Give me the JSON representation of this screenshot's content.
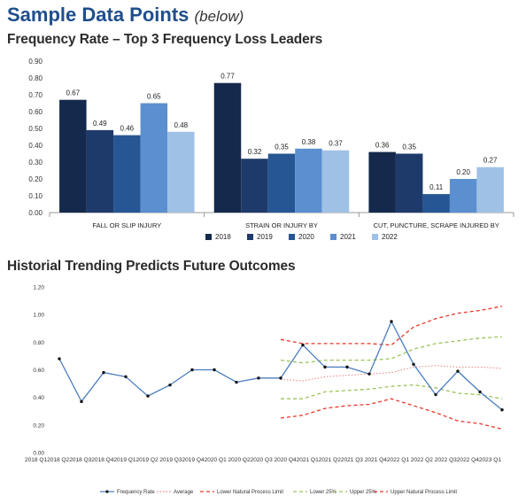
{
  "header": {
    "title": "Sample Data Points",
    "title_note": "(below)"
  },
  "chart_data": [
    {
      "type": "bar",
      "title": "Frequency Rate – Top 3 Frequency Loss Leaders",
      "categories": [
        "FALL OR SLIP INJURY",
        "STRAIN OR INJURY BY",
        "CUT, PUNCTURE, SCRAPE INJURED BY"
      ],
      "series": [
        {
          "name": "2018",
          "color": "#14294b",
          "values": [
            0.67,
            0.77,
            0.36
          ]
        },
        {
          "name": "2019",
          "color": "#1e3a6a",
          "values": [
            0.49,
            0.32,
            0.35
          ]
        },
        {
          "name": "2020",
          "color": "#265693",
          "values": [
            0.46,
            0.35,
            0.11
          ]
        },
        {
          "name": "2021",
          "color": "#5b8fcf",
          "values": [
            0.65,
            0.38,
            0.2
          ]
        },
        {
          "name": "2022",
          "color": "#9fc1e6",
          "values": [
            0.48,
            0.37,
            0.27
          ]
        }
      ],
      "data_labels": [
        [
          "0.67",
          "0.49",
          "0.46",
          "0.65",
          "0.48"
        ],
        [
          "0.77",
          "0.32",
          "0.35",
          "0.38",
          "0.37"
        ],
        [
          "0.36",
          "0.35",
          "0.11",
          "0.20",
          "0.27"
        ]
      ],
      "ylim": [
        0,
        0.9
      ],
      "yticks": [
        "0.00",
        "0.10",
        "0.20",
        "0.30",
        "0.40",
        "0.50",
        "0.60",
        "0.70",
        "0.80",
        "0.90"
      ],
      "legend_position": "bottom",
      "grid": false
    },
    {
      "type": "line",
      "title": "Historial Trending Predicts Future Outcomes",
      "x": [
        "2018 Q1",
        "2018 Q2",
        "2018 Q3",
        "2018 Q4",
        "2019 Q1",
        "2019 Q2",
        "2019 Q3",
        "2019 Q4",
        "2020 Q1",
        "2020 Q2",
        "2020 Q3",
        "2020 Q4",
        "2021 Q1",
        "2021 Q2",
        "2021 Q3",
        "2021 Q4",
        "2022 Q1",
        "2022 Q2",
        "2022 Q3",
        "2022 Q4",
        "2023 Q1"
      ],
      "x_tick_text": "2018 Q12018 Q22018 Q32018 Q42019 Q12019 Q2 2019 Q32019 Q42020 Q1 2020 Q22020 Q3 2020 Q42021 Q12021 Q22021 Q3 2021 Q42022 Q1 2022 Q2 2022 Q32022 Q42023 Q1",
      "ylim": [
        0,
        1.2
      ],
      "yticks": [
        "0.00",
        "0.20",
        "0.40",
        "0.60",
        "0.80",
        "1.00",
        "1.20"
      ],
      "series": [
        {
          "name": "Frequency Rate",
          "color": "#4a7dbf",
          "style": "solid-markers",
          "values": [
            0.68,
            0.37,
            0.58,
            0.55,
            0.41,
            0.49,
            0.6,
            0.6,
            0.51,
            0.54,
            0.54,
            0.78,
            0.62,
            0.62,
            0.57,
            0.95,
            0.64,
            0.42,
            0.59,
            0.44,
            0.31
          ]
        },
        {
          "name": "Average",
          "color": "#e68080",
          "style": "dotted",
          "values": [
            null,
            null,
            null,
            null,
            null,
            null,
            null,
            null,
            null,
            null,
            0.53,
            0.52,
            0.55,
            0.56,
            0.57,
            0.58,
            0.62,
            0.63,
            0.62,
            0.62,
            0.61
          ]
        },
        {
          "name": "Lower Natural Process Limit",
          "color": "#e8372a",
          "style": "dashed",
          "values": [
            null,
            null,
            null,
            null,
            null,
            null,
            null,
            null,
            null,
            null,
            0.25,
            0.27,
            0.32,
            0.34,
            0.35,
            0.39,
            0.34,
            0.29,
            0.23,
            0.21,
            0.17
          ]
        },
        {
          "name": "Lower 25%",
          "color": "#9dc25a",
          "style": "dashed",
          "values": [
            null,
            null,
            null,
            null,
            null,
            null,
            null,
            null,
            null,
            null,
            0.39,
            0.39,
            0.44,
            0.45,
            0.46,
            0.48,
            0.49,
            0.47,
            0.43,
            0.42,
            0.39
          ]
        },
        {
          "name": "Upper 25%",
          "color": "#9dc25a",
          "style": "dashed",
          "values": [
            null,
            null,
            null,
            null,
            null,
            null,
            null,
            null,
            null,
            null,
            0.67,
            0.65,
            0.67,
            0.67,
            0.67,
            0.68,
            0.75,
            0.79,
            0.81,
            0.83,
            0.84
          ]
        },
        {
          "name": "Upper Natural Process Limit",
          "color": "#e8372a",
          "style": "dashed",
          "values": [
            null,
            null,
            null,
            null,
            null,
            null,
            null,
            null,
            null,
            null,
            0.82,
            0.79,
            0.79,
            0.79,
            0.79,
            0.78,
            0.91,
            0.97,
            1.01,
            1.03,
            1.06
          ]
        }
      ],
      "legend_position": "bottom",
      "grid": false
    }
  ]
}
